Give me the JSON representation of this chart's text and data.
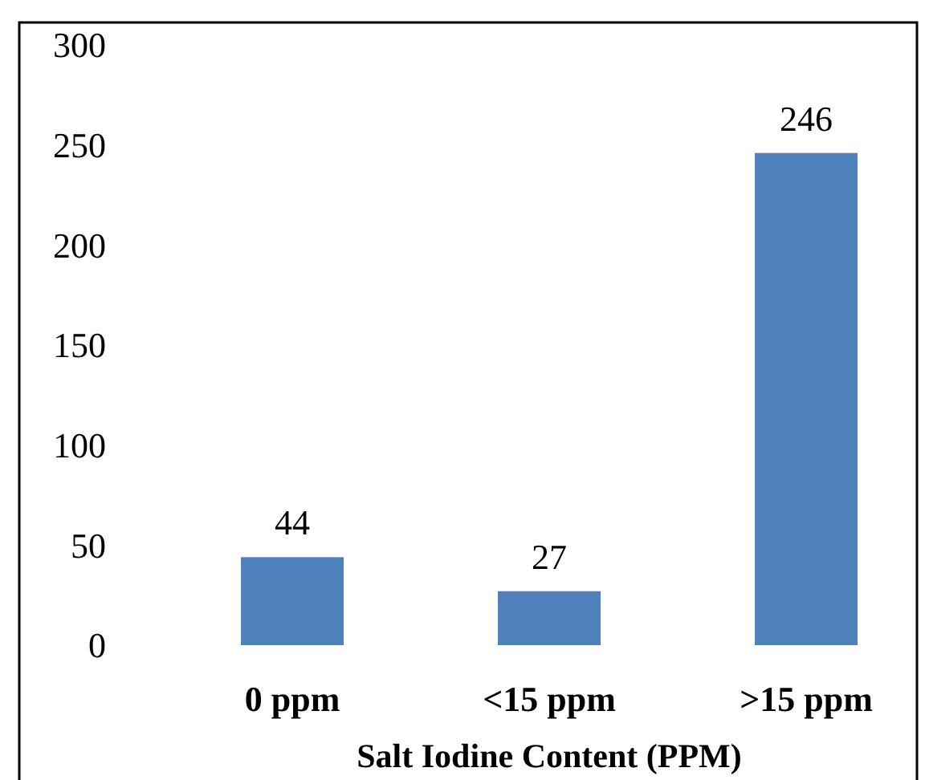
{
  "chart_data": {
    "type": "bar",
    "xlabel": "Salt Iodine Content (PPM)",
    "categories": [
      "0 ppm",
      "<15 ppm",
      ">15 ppm"
    ],
    "values": [
      44,
      27,
      246
    ],
    "color": "#4f81bd",
    "ylim": [
      0,
      300
    ],
    "yticks": [
      0,
      50,
      100,
      150,
      200,
      250,
      300
    ],
    "data_labels": true,
    "grid": false
  }
}
